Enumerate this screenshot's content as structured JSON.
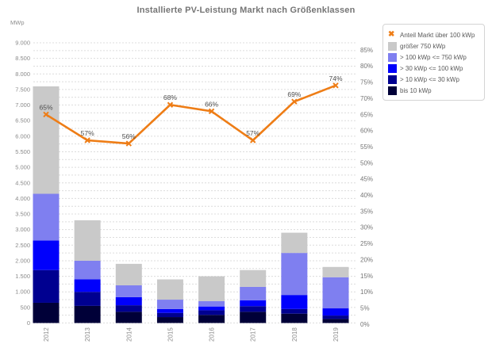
{
  "title": "Installierte PV-Leistung Markt nach Größenklassen",
  "chart_data": {
    "type": "bar",
    "stacked": true,
    "title": "Installierte PV-Leistung Markt nach Größenklassen",
    "categories": [
      "2012",
      "2013",
      "2014",
      "2015",
      "2016",
      "2017",
      "2018",
      "2019"
    ],
    "unit": "MWp",
    "series": [
      {
        "name": "bis 10 kWp",
        "color": "#000038",
        "values": [
          650,
          550,
          360,
          190,
          260,
          360,
          300,
          130
        ]
      },
      {
        "name": "> 10 kWp <= 30 kWp",
        "color": "#000090",
        "values": [
          1050,
          450,
          210,
          135,
          150,
          180,
          150,
          110
        ]
      },
      {
        "name": "> 30 kWp <= 100 kWp",
        "color": "#0000fc",
        "values": [
          950,
          400,
          260,
          125,
          120,
          190,
          450,
          230
        ]
      },
      {
        "name": "> 100 kWp <= 750 kWp",
        "color": "#7f7ff0",
        "values": [
          1500,
          600,
          380,
          300,
          170,
          430,
          1350,
          1000
        ]
      },
      {
        "name": "größer 750 kWp",
        "color": "#c9c9c9",
        "values": [
          3450,
          1300,
          690,
          650,
          800,
          540,
          650,
          330
        ]
      }
    ],
    "totals": [
      7600,
      3300,
      1900,
      1400,
      1500,
      1700,
      2900,
      1800
    ],
    "line": {
      "name": "Anteil Markt über 100 kWp",
      "color": "#ee7d16",
      "values_pct": [
        65,
        57,
        56,
        68,
        66,
        57,
        69,
        74
      ],
      "point_labels": [
        "65%",
        "57%",
        "56%",
        "68%",
        "66%",
        "57%",
        "69%",
        "74%"
      ]
    },
    "left_axis": {
      "label": "MWp",
      "min": 0,
      "max": 9000,
      "tick_step": 500,
      "grid_step": 250
    },
    "right_axis": {
      "min_pct": 0,
      "max_pct": 85,
      "tick_step_pct": 5
    },
    "grid": "dashed",
    "legend_position": "top-right"
  },
  "legend": {
    "items": [
      {
        "label": "Anteil Markt über 100 kWp",
        "marker": "x",
        "color": "#ee7d16"
      },
      {
        "label": "größer 750 kWp",
        "marker": "square",
        "color": "#c9c9c9"
      },
      {
        "label": "> 100 kWp <= 750 kWp",
        "marker": "square",
        "color": "#7f7ff0"
      },
      {
        "label": "> 30 kWp <= 100 kWp",
        "marker": "square",
        "color": "#0000fc"
      },
      {
        "label": "> 10 kWp <= 30 kWp",
        "marker": "square",
        "color": "#000090"
      },
      {
        "label": "bis 10 kWp",
        "marker": "square",
        "color": "#000038"
      }
    ]
  },
  "colors": {
    "grid": "#dcdcdc",
    "tick_label": "#8c8c8c",
    "right_tick_label": "#757575",
    "point_label": "#4d4d4d",
    "title": "#757575",
    "line": "#ee7d16"
  }
}
